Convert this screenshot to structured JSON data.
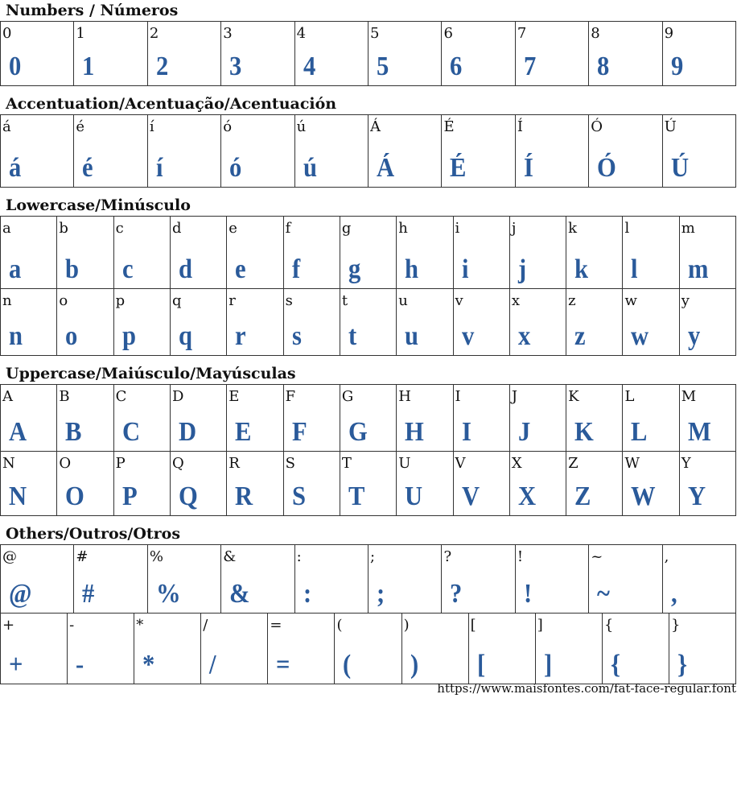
{
  "sections": [
    {
      "title": "Numbers / Números",
      "rows": [
        [
          "0",
          "1",
          "2",
          "3",
          "4",
          "5",
          "6",
          "7",
          "8",
          "9"
        ]
      ]
    },
    {
      "title": "Accentuation/Acentuação/Acentuación",
      "rows": [
        [
          "á",
          "é",
          "í",
          "ó",
          "ú",
          "Á",
          "É",
          "Í",
          "Ó",
          "Ú"
        ]
      ]
    },
    {
      "title": "Lowercase/Minúsculo",
      "rows": [
        [
          "a",
          "b",
          "c",
          "d",
          "e",
          "f",
          "g",
          "h",
          "i",
          "j",
          "k",
          "l",
          "m"
        ],
        [
          "n",
          "o",
          "p",
          "q",
          "r",
          "s",
          "t",
          "u",
          "v",
          "x",
          "z",
          "w",
          "y"
        ]
      ]
    },
    {
      "title": "Uppercase/Maiúsculo/Mayúsculas",
      "rows": [
        [
          "A",
          "B",
          "C",
          "D",
          "E",
          "F",
          "G",
          "H",
          "I",
          "J",
          "K",
          "L",
          "M"
        ],
        [
          "N",
          "O",
          "P",
          "Q",
          "R",
          "S",
          "T",
          "U",
          "V",
          "X",
          "Z",
          "W",
          "Y"
        ]
      ]
    },
    {
      "title": "Others/Outros/Otros",
      "rows": [
        [
          "@",
          "#",
          "%",
          "&",
          ":",
          ";",
          "?",
          "!",
          "~",
          ","
        ],
        [
          "+",
          "-",
          "*",
          "/",
          "=",
          "(",
          ")",
          "[",
          "]",
          "{",
          "}"
        ]
      ]
    }
  ],
  "footer_url": "https://www.maisfontes.com/fat-face-regular.font",
  "glyph_color": "#2a5a9a"
}
